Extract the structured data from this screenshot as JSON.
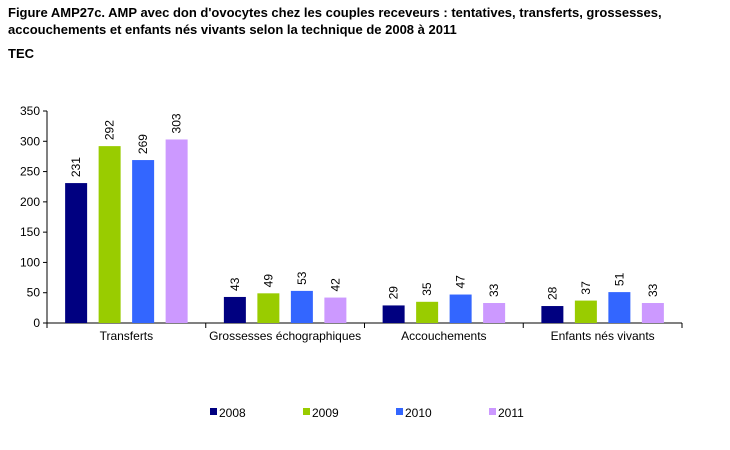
{
  "figure": {
    "title": "Figure AMP27c. AMP avec don d'ovocytes chez les couples receveurs : tentatives, transferts, grossesses, accouchements et enfants nés vivants selon la technique de 2008 à 2011",
    "subtitle": "TEC"
  },
  "chart_data": {
    "type": "bar",
    "title": "Figure AMP27c. AMP avec don d'ovocytes chez les couples receveurs : tentatives, transferts, grossesses, accouchements et enfants nés vivants selon la technique de 2008 à 2011",
    "subtitle": "TEC",
    "categories": [
      "Transferts",
      "Grossesses échographiques",
      "Accouchements",
      "Enfants nés vivants"
    ],
    "series": [
      {
        "name": "2008",
        "color": "#000080",
        "values": [
          231,
          43,
          29,
          28
        ]
      },
      {
        "name": "2009",
        "color": "#99CC00",
        "values": [
          292,
          49,
          35,
          37
        ]
      },
      {
        "name": "2010",
        "color": "#3366FF",
        "values": [
          269,
          53,
          47,
          51
        ]
      },
      {
        "name": "2011",
        "color": "#CC99FF",
        "values": [
          303,
          42,
          33,
          33
        ]
      }
    ],
    "yticks": [
      0,
      50,
      100,
      150,
      200,
      250,
      300,
      350
    ],
    "ylim": [
      0,
      350
    ],
    "xlabel": "",
    "ylabel": "",
    "grid": false,
    "legend_position": "bottom",
    "data_labels": "vertical-above"
  }
}
